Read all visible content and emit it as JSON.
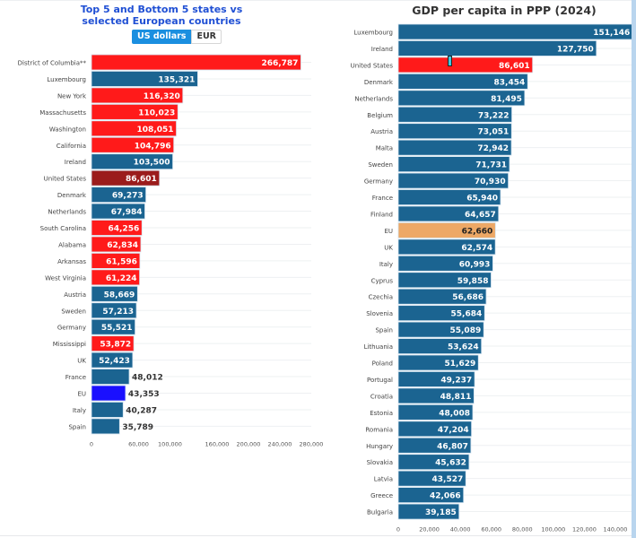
{
  "left_panel": {
    "title_line1": "Top 5 and Bottom 5 states vs",
    "title_line2": "selected European countries",
    "currency_toggle": {
      "options": [
        "US dollars",
        "EUR"
      ],
      "selected": "US dollars"
    }
  },
  "right_panel": {
    "title": "GDP per capita in PPP (2024)"
  },
  "colors": {
    "us_state": "#ff1a1a",
    "european_country": "#1b6491",
    "united_states": "#9b1c1c",
    "eu_left": "#1a10ff",
    "us_right": "#ff1a1a",
    "eu_right": "#eda866",
    "toggle_active": "#1a8fe0",
    "left_title": "#1f4fd4"
  },
  "chart_data": [
    {
      "type": "bar",
      "orientation": "horizontal",
      "title": "Top 5 and Bottom 5 states vs selected European countries",
      "unit": "US dollars",
      "xlabel": "",
      "ylabel": "",
      "xlim": [
        0,
        280000
      ],
      "xticks": [
        0,
        60000,
        100000,
        160000,
        200000,
        240000,
        280000
      ],
      "xtick_labels": [
        "0",
        "60,000",
        "100,000",
        "160,000",
        "200,000",
        "240,000",
        "280,000"
      ],
      "grid": true,
      "categories": [
        "District of Columbia**",
        "Luxembourg",
        "New York",
        "Massachusetts",
        "Washington",
        "California",
        "Ireland",
        "United States",
        "Denmark",
        "Netherlands",
        "South Carolina",
        "Alabama",
        "Arkansas",
        "West Virginia",
        "Austria",
        "Sweden",
        "Germany",
        "Mississippi",
        "UK",
        "France",
        "EU",
        "Italy",
        "Spain"
      ],
      "values": [
        266787,
        135321,
        116320,
        110023,
        108051,
        104796,
        103500,
        86601,
        69273,
        67984,
        64256,
        62834,
        61596,
        61224,
        58669,
        57213,
        55521,
        53872,
        52423,
        48012,
        43353,
        40287,
        35789
      ],
      "labels": [
        "266,787",
        "135,321",
        "116,320",
        "110,023",
        "108,051",
        "104,796",
        "103,500",
        "86,601",
        "69,273",
        "67,984",
        "64,256",
        "62,834",
        "61,596",
        "61,224",
        "58,669",
        "57,213",
        "55,521",
        "53,872",
        "52,423",
        "48,012",
        "43,353",
        "40,287",
        "35,789"
      ],
      "groups": [
        "us_state",
        "european_country",
        "us_state",
        "us_state",
        "us_state",
        "us_state",
        "european_country",
        "united_states",
        "european_country",
        "european_country",
        "us_state",
        "us_state",
        "us_state",
        "us_state",
        "european_country",
        "european_country",
        "european_country",
        "us_state",
        "european_country",
        "european_country",
        "eu_left",
        "european_country",
        "european_country"
      ]
    },
    {
      "type": "bar",
      "orientation": "horizontal",
      "title": "GDP per capita in PPP (2024)",
      "xlabel": "",
      "ylabel": "",
      "xlim": [
        0,
        140000
      ],
      "xticks": [
        0,
        20000,
        40000,
        60000,
        80000,
        100000,
        120000,
        140000
      ],
      "xtick_labels": [
        "0",
        "20,000",
        "40,000",
        "60,000",
        "80,000",
        "100,000",
        "120,000",
        "140,000"
      ],
      "grid": true,
      "categories": [
        "Luxembourg",
        "Ireland",
        "United States",
        "Denmark",
        "Netherlands",
        "Belgium",
        "Austria",
        "Malta",
        "Sweden",
        "Germany",
        "France",
        "Finland",
        "EU",
        "UK",
        "Italy",
        "Cyprus",
        "Czechia",
        "Slovenia",
        "Spain",
        "Lithuania",
        "Poland",
        "Portugal",
        "Croatia",
        "Estonia",
        "Romania",
        "Hungary",
        "Slovakia",
        "Latvia",
        "Greece",
        "Bulgaria"
      ],
      "values": [
        151146,
        127750,
        86601,
        83454,
        81495,
        73222,
        73051,
        72942,
        71731,
        70930,
        65940,
        64657,
        62660,
        62574,
        60993,
        59858,
        56686,
        55684,
        55089,
        53624,
        51629,
        49237,
        48811,
        48008,
        47204,
        46807,
        45632,
        43527,
        42066,
        39185
      ],
      "labels": [
        "151,146",
        "127,750",
        "86,601",
        "83,454",
        "81,495",
        "73,222",
        "73,051",
        "72,942",
        "71,731",
        "70,930",
        "65,940",
        "64,657",
        "62,660",
        "62,574",
        "60,993",
        "59,858",
        "56,686",
        "55,684",
        "55,089",
        "53,624",
        "51,629",
        "49,237",
        "48,811",
        "48,008",
        "47,204",
        "46,807",
        "45,632",
        "43,527",
        "42,066",
        "39,185"
      ],
      "groups": [
        "european_country",
        "european_country",
        "us_right",
        "european_country",
        "european_country",
        "european_country",
        "european_country",
        "european_country",
        "european_country",
        "european_country",
        "european_country",
        "european_country",
        "eu_right",
        "european_country",
        "european_country",
        "european_country",
        "european_country",
        "european_country",
        "european_country",
        "european_country",
        "european_country",
        "european_country",
        "european_country",
        "european_country",
        "european_country",
        "european_country",
        "european_country",
        "european_country",
        "european_country",
        "european_country"
      ]
    }
  ]
}
